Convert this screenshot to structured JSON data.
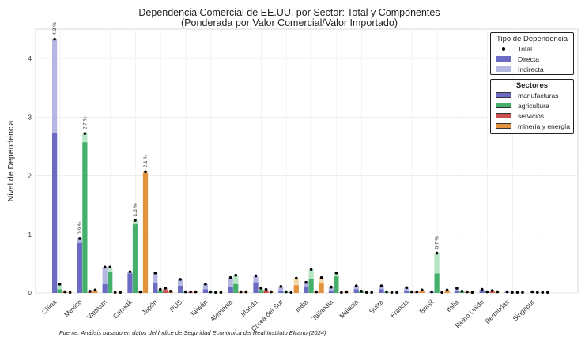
{
  "chart_data": {
    "type": "bar",
    "title": "Dependencia Comercial de EE.UU. por Sector: Total y Componentes",
    "subtitle": "(Ponderada por Valor Comercial/Valor Importado)",
    "xlabel": "",
    "ylabel": "Nivel de Dependencia",
    "ylim": [
      0,
      4.5
    ],
    "yticks": [
      "0",
      "1",
      "2",
      "3",
      "4"
    ],
    "grid": true,
    "sectors": [
      "manufacturas",
      "agricultura",
      "servicios",
      "minería y energía"
    ],
    "colors": {
      "manufacturas": {
        "direct": "#6b6bc4",
        "indirect": "#b3b7e2"
      },
      "agricultura": {
        "direct": "#45b06b",
        "indirect": "#b5e5c3"
      },
      "servicios": {
        "direct": "#c94f4f",
        "indirect": "#e8b0b0"
      },
      "minería y energía": {
        "direct": "#e0923d",
        "indirect": "#f5d8a8"
      }
    },
    "categories": [
      "China",
      "Mexico",
      "Vietnam",
      "Canadá",
      "Japón",
      "RUS",
      "Taiwán",
      "Alemania",
      "Irlanda",
      "Corea del Sur",
      "India",
      "Tailandia",
      "Malasia",
      "Suiza",
      "Francia",
      "Brasil",
      "Italia",
      "Reino Unido",
      "Bermudas",
      "Singapur"
    ],
    "series": [
      {
        "name": "manufacturas",
        "direct": [
          2.73,
          0.85,
          0.15,
          0.33,
          0.17,
          0.12,
          0.06,
          0.1,
          0.18,
          0.04,
          0.11,
          0.04,
          0.06,
          0.06,
          0.04,
          0.01,
          0.03,
          0.03,
          0.01,
          0.01
        ],
        "total": [
          4.33,
          0.93,
          0.44,
          0.36,
          0.34,
          0.23,
          0.15,
          0.26,
          0.29,
          0.11,
          0.18,
          0.1,
          0.12,
          0.12,
          0.09,
          0.02,
          0.08,
          0.06,
          0.02,
          0.02
        ]
      },
      {
        "name": "agricultura",
        "direct": [
          0.06,
          2.57,
          0.35,
          1.17,
          0.04,
          0.01,
          0.01,
          0.15,
          0.05,
          0.01,
          0.24,
          0.28,
          0.02,
          0.01,
          0.01,
          0.33,
          0.02,
          0.01,
          0.0,
          0.0
        ],
        "total": [
          0.15,
          2.72,
          0.44,
          1.24,
          0.06,
          0.02,
          0.02,
          0.3,
          0.08,
          0.02,
          0.4,
          0.34,
          0.03,
          0.02,
          0.02,
          0.68,
          0.03,
          0.02,
          0.01,
          0.01
        ]
      },
      {
        "name": "servicios",
        "direct": [
          0.01,
          0.01,
          0.0,
          0.01,
          0.05,
          0.01,
          0.0,
          0.01,
          0.03,
          0.0,
          0.01,
          0.0,
          0.0,
          0.0,
          0.01,
          0.0,
          0.01,
          0.02,
          0.0,
          0.0
        ],
        "total": [
          0.02,
          0.03,
          0.01,
          0.02,
          0.08,
          0.02,
          0.01,
          0.02,
          0.06,
          0.01,
          0.02,
          0.01,
          0.01,
          0.01,
          0.02,
          0.01,
          0.02,
          0.04,
          0.01,
          0.01
        ]
      },
      {
        "name": "minería y energía",
        "direct": [
          0.0,
          0.04,
          0.0,
          2.05,
          0.02,
          0.01,
          0.0,
          0.01,
          0.01,
          0.13,
          0.16,
          0.01,
          0.0,
          0.0,
          0.03,
          0.03,
          0.0,
          0.01,
          0.0,
          0.0
        ],
        "total": [
          0.01,
          0.05,
          0.01,
          2.07,
          0.03,
          0.02,
          0.01,
          0.02,
          0.02,
          0.25,
          0.26,
          0.02,
          0.01,
          0.01,
          0.05,
          0.05,
          0.01,
          0.02,
          0.01,
          0.01
        ]
      }
    ],
    "annotations": [
      {
        "category": "China",
        "series": "manufacturas",
        "text": "4.3 %"
      },
      {
        "category": "Mexico",
        "series": "manufacturas",
        "text": "0.9 %"
      },
      {
        "category": "Mexico",
        "series": "agricultura",
        "text": "2.7 %"
      },
      {
        "category": "Canadá",
        "series": "agricultura",
        "text": "1.2 %"
      },
      {
        "category": "Canadá",
        "series": "minería y energía",
        "text": "2.1 %"
      },
      {
        "category": "Brasil",
        "series": "agricultura",
        "text": "0.7 %"
      }
    ]
  },
  "legend_type": {
    "title": "Tipo de Dependencia",
    "items": [
      {
        "label": "Total",
        "kind": "dot"
      },
      {
        "label": "Directa",
        "color": "#6b6bc4"
      },
      {
        "label": "Indirecta",
        "color": "#b3b7e2"
      }
    ]
  },
  "legend_sector": {
    "title": "Sectores",
    "items": [
      {
        "label": "manufacturas",
        "color": "#6b6bc4"
      },
      {
        "label": "agricultura",
        "color": "#45b06b"
      },
      {
        "label": "servicios",
        "color": "#c94f4f"
      },
      {
        "label": "minería y energía",
        "color": "#e0923d"
      }
    ]
  },
  "source": "Fuente: Análisis basado en datos del Índice de Seguridad Económica del Real Instituto Elcano (2024)"
}
